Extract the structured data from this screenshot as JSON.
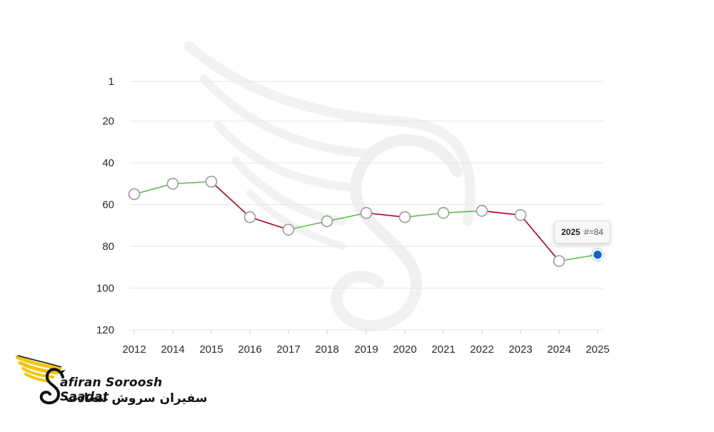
{
  "chart_data": {
    "type": "line",
    "title": "",
    "xlabel": "",
    "ylabel": "",
    "y_inverted": true,
    "ylim": [
      1,
      120
    ],
    "y_ticks": [
      1,
      20,
      40,
      60,
      80,
      100,
      120
    ],
    "categories": [
      "2012",
      "2014",
      "2015",
      "2016",
      "2017",
      "2018",
      "2019",
      "2020",
      "2021",
      "2022",
      "2023",
      "2024",
      "2025"
    ],
    "values": [
      55,
      50,
      49,
      66,
      72,
      68,
      64,
      66,
      64,
      63,
      65,
      87,
      84
    ],
    "grid": true,
    "legend": "none",
    "colors": {
      "up": "#5cc24a",
      "down": "#b3001b",
      "highlight": "#1565c0"
    },
    "highlight_index": 12,
    "tooltip": {
      "year": "2025",
      "rank": "#=84"
    }
  },
  "brand": {
    "name_en": "afiran Soroosh Saadat",
    "name_fa": "سفیران سروش سعادت"
  }
}
